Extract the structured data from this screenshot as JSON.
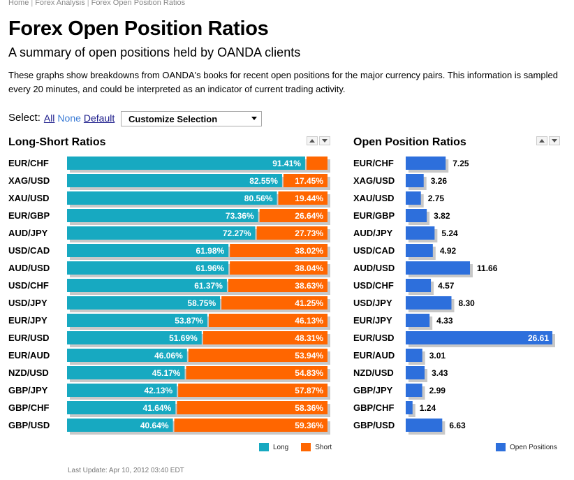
{
  "breadcrumb": [
    "Home",
    "Forex Analysis",
    "Forex Open Position Ratios"
  ],
  "page": {
    "title": "Forex Open Position Ratios",
    "subtitle": "A summary of open positions held by OANDA clients",
    "description": "These graphs show breakdowns from OANDA's books for recent open positions for the major currency pairs. This information is sampled every 20 minutes, and could be interpreted as an indicator of current trading activity."
  },
  "selection": {
    "label": "Select:",
    "all": "All",
    "none": "None",
    "default": "Default",
    "dropdown": "Customize Selection"
  },
  "colors": {
    "long": "#17a9c1",
    "short": "#ff6600",
    "open": "#2d6fdc",
    "shadow": "#c8c8c8"
  },
  "icons": {
    "sort_up": "triangle-up-icon",
    "sort_down": "triangle-down-icon"
  },
  "last_update": "Last Update: Apr 10, 2012 03:40 EDT",
  "chart_data": [
    {
      "type": "bar",
      "title": "Long-Short Ratios",
      "orientation": "horizontal-stacked",
      "categories": [
        "EUR/CHF",
        "XAG/USD",
        "XAU/USD",
        "EUR/GBP",
        "AUD/JPY",
        "USD/CAD",
        "AUD/USD",
        "USD/CHF",
        "USD/JPY",
        "EUR/JPY",
        "EUR/USD",
        "EUR/AUD",
        "NZD/USD",
        "GBP/JPY",
        "GBP/CHF",
        "GBP/USD"
      ],
      "series": [
        {
          "name": "Long",
          "values": [
            91.41,
            82.55,
            80.56,
            73.36,
            72.27,
            61.98,
            61.96,
            61.37,
            58.75,
            53.87,
            51.69,
            46.06,
            45.17,
            42.13,
            41.64,
            40.64
          ],
          "labels": [
            "91.41%",
            "82.55%",
            "80.56%",
            "73.36%",
            "72.27%",
            "61.98%",
            "61.96%",
            "61.37%",
            "58.75%",
            "53.87%",
            "51.69%",
            "46.06%",
            "45.17%",
            "42.13%",
            "41.64%",
            "40.64%"
          ]
        },
        {
          "name": "Short",
          "values": [
            8.59,
            17.45,
            19.44,
            26.64,
            27.73,
            38.02,
            38.04,
            38.63,
            41.25,
            46.13,
            48.31,
            53.94,
            54.83,
            57.87,
            58.36,
            59.36
          ],
          "labels": [
            "",
            "17.45%",
            "19.44%",
            "26.64%",
            "27.73%",
            "38.02%",
            "38.04%",
            "38.63%",
            "41.25%",
            "46.13%",
            "48.31%",
            "53.94%",
            "54.83%",
            "57.87%",
            "58.36%",
            "59.36%"
          ]
        }
      ],
      "xlim": [
        0,
        100
      ],
      "legend": "bottom-right"
    },
    {
      "type": "bar",
      "title": "Open Position Ratios",
      "orientation": "horizontal",
      "categories": [
        "EUR/CHF",
        "XAG/USD",
        "XAU/USD",
        "EUR/GBP",
        "AUD/JPY",
        "USD/CAD",
        "AUD/USD",
        "USD/CHF",
        "USD/JPY",
        "EUR/JPY",
        "EUR/USD",
        "EUR/AUD",
        "NZD/USD",
        "GBP/JPY",
        "GBP/CHF",
        "GBP/USD"
      ],
      "series": [
        {
          "name": "Open Positions",
          "values": [
            7.25,
            3.26,
            2.75,
            3.82,
            5.24,
            4.92,
            11.66,
            4.57,
            8.3,
            4.33,
            26.61,
            3.01,
            3.43,
            2.99,
            1.24,
            6.63
          ],
          "labels": [
            "7.25",
            "3.26",
            "2.75",
            "3.82",
            "5.24",
            "4.92",
            "11.66",
            "4.57",
            "8.30",
            "4.33",
            "26.61",
            "3.01",
            "3.43",
            "2.99",
            "1.24",
            "6.63"
          ]
        }
      ],
      "xlim": [
        0,
        26.61
      ],
      "legend": "bottom-right"
    }
  ]
}
